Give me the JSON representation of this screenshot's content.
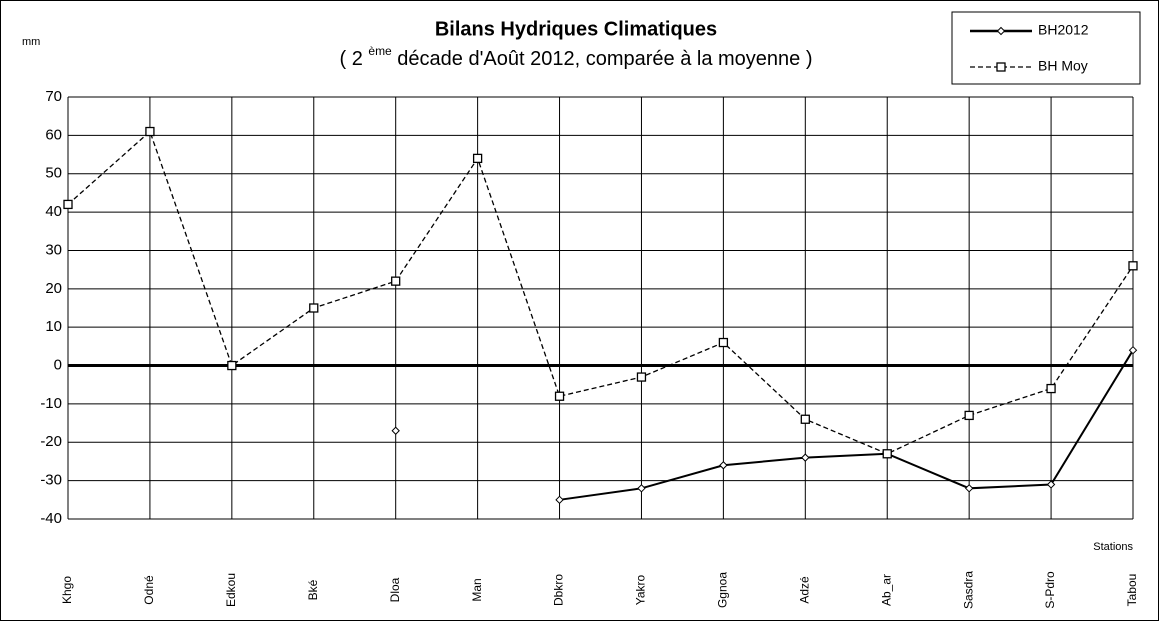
{
  "chart_data": {
    "type": "line",
    "title": "Bilans Hydriques Climatiques",
    "subtitle_parts": [
      "( 2 ",
      "ème",
      " décade d'Août 2012, comparée à la moyenne )"
    ],
    "y_label": "mm",
    "x_label": "Stations",
    "categories": [
      "Khgo",
      "Odné",
      "Edkou",
      "Bké",
      "Dloa",
      "Man",
      "Dbkro",
      "Yakro",
      "Ggnoa",
      "Adzé",
      "Ab_ar",
      "Sasdra",
      "S-Pdro",
      "Tabou"
    ],
    "series": [
      {
        "name": "BH2012",
        "color": "#000000",
        "dashed": false,
        "marker": "diamond",
        "values": [
          null,
          null,
          null,
          null,
          -17,
          null,
          -35,
          -32,
          -26,
          -24,
          -23,
          -32,
          -31,
          4
        ]
      },
      {
        "name": "BH Moy",
        "color": "#000000",
        "dashed": true,
        "marker": "square",
        "values": [
          42,
          61,
          0,
          15,
          22,
          54,
          -8,
          -3,
          6,
          -14,
          -23,
          -13,
          -6,
          26
        ]
      }
    ],
    "ylim": [
      -40,
      70
    ],
    "yticks": [
      -40,
      -30,
      -20,
      -10,
      0,
      10,
      20,
      30,
      40,
      50,
      60,
      70
    ],
    "grid": true,
    "legend": "top-right"
  }
}
